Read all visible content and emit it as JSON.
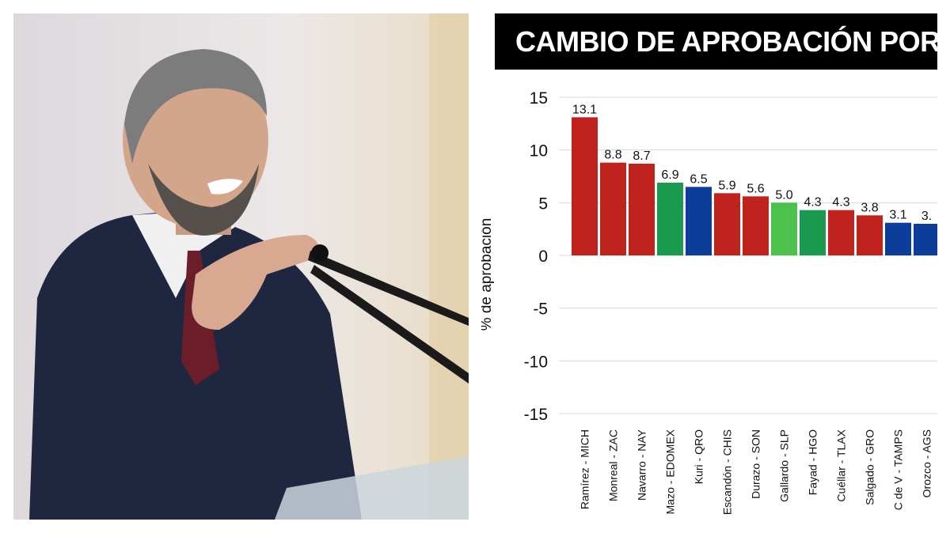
{
  "chart_data": {
    "type": "bar",
    "title": "CAMBIO DE APROBACIÓN POR E",
    "ylabel": "% de aprobación",
    "xlabel": "",
    "ylim": [
      -15,
      15
    ],
    "yticks": [
      15,
      10,
      5,
      0,
      -5,
      -10,
      -15
    ],
    "grid": true,
    "categories": [
      "Ramírez - MICH",
      "Monreal - ZAC",
      "Navarro - NAY",
      "Mazo - EDOMEX",
      "Kuri - QRO",
      "Escandón - CHIS",
      "Durazo - SON",
      "Gallardo - SLP",
      "Fayad - HGO",
      "Cuéllar - TLAX",
      "Salgado - GRO",
      "C de V - TAMPS",
      "Orozco - AGS"
    ],
    "values": [
      13.1,
      8.8,
      8.7,
      6.9,
      6.5,
      5.9,
      5.6,
      5.0,
      4.3,
      4.3,
      3.8,
      3.1,
      3.0
    ],
    "value_labels": [
      "13.1",
      "8.8",
      "8.7",
      "6.9",
      "6.5",
      "5.9",
      "5.6",
      "5.0",
      "4.3",
      "4.3",
      "3.8",
      "3.1",
      "3."
    ],
    "colors": [
      "#c0221e",
      "#c0221e",
      "#c0221e",
      "#1a9a4e",
      "#0d3d9a",
      "#c0221e",
      "#c0221e",
      "#4cc24c",
      "#1a9a4e",
      "#c0221e",
      "#c0221e",
      "#0d3d9a",
      "#0d3d9a"
    ]
  }
}
